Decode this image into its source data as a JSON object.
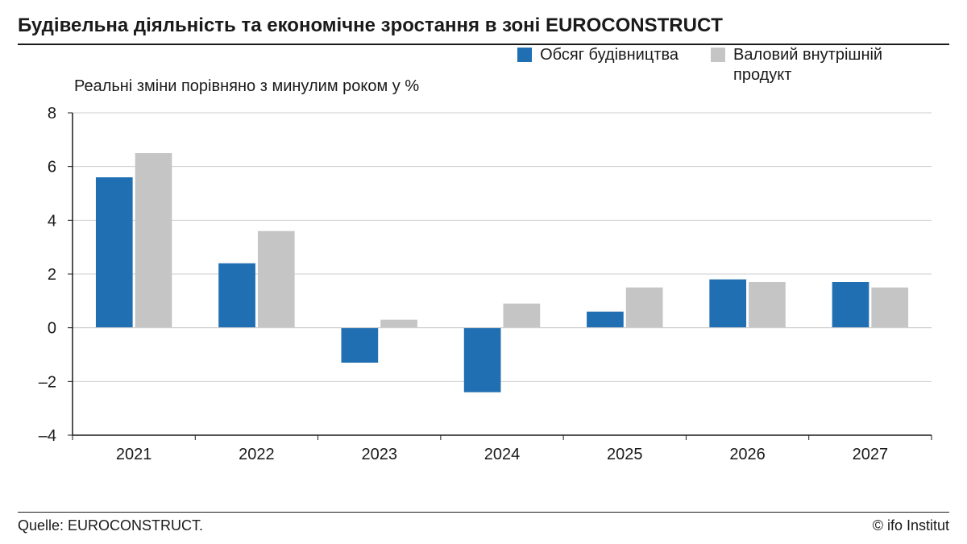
{
  "title": "Будівельна діяльність та економічне зростання в зоні EUROCONSTRUCT",
  "subtitle": "Реальні зміни порівняно з минулим роком у %",
  "legend": {
    "series1": "Обсяг будівництва",
    "series2": "Валовий внутрішній продукт"
  },
  "footer": {
    "source": "Quelle: EUROCONSTRUCT.",
    "credit": "© ifo Institut"
  },
  "chart": {
    "type": "bar",
    "categories": [
      "2021",
      "2022",
      "2023",
      "2024",
      "2025",
      "2026",
      "2027"
    ],
    "series": [
      {
        "name": "Обсяг будівництва",
        "color": "#1f6fb2",
        "values": [
          5.6,
          2.4,
          -1.3,
          -2.4,
          0.6,
          1.8,
          1.7
        ]
      },
      {
        "name": "Валовий внутрішній продукт",
        "color": "#c5c5c5",
        "values": [
          6.5,
          3.6,
          0.3,
          0.9,
          1.5,
          1.7,
          1.5
        ]
      }
    ],
    "ylim": [
      -4,
      8
    ],
    "ytick_step": 2,
    "yticks": [
      -4,
      -2,
      0,
      2,
      4,
      6,
      8
    ],
    "grid_color": "#cfcfcf",
    "axis_color": "#1a1a1a",
    "background_color": "#ffffff",
    "bar_group_width": 0.62,
    "bar_gap": 0.02,
    "title_fontsize": 24,
    "label_fontsize": 20,
    "tick_fontsize": 20
  },
  "colors": {
    "series1": "#1f6fb2",
    "series2": "#c5c5c5",
    "text": "#1a1a1a",
    "grid": "#cfcfcf",
    "rule": "#1a1a1a",
    "background": "#ffffff"
  }
}
